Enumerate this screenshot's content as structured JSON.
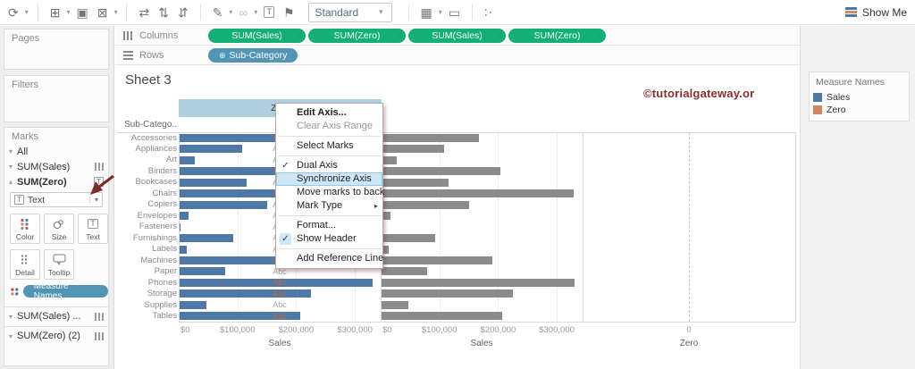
{
  "toolbar": {
    "standard_label": "Standard",
    "show_me_label": "Show Me",
    "items": [
      {
        "name": "refresh-icon",
        "glyph": "⟳"
      },
      {
        "name": "refresh-caret",
        "caret": true
      },
      {
        "divider": true
      },
      {
        "name": "new-worksheet-icon",
        "glyph": "⊞"
      },
      {
        "name": "new-worksheet-caret",
        "caret": true
      },
      {
        "name": "duplicate-sheet-icon",
        "glyph": "▣"
      },
      {
        "name": "clear-sheet-icon",
        "glyph": "⊠"
      },
      {
        "name": "clear-sheet-caret",
        "caret": true
      },
      {
        "divider": true
      },
      {
        "name": "swap-rows-columns-icon",
        "glyph": "⇄"
      },
      {
        "name": "sort-ascending-icon",
        "glyph": "⇅"
      },
      {
        "name": "sort-descending-icon",
        "glyph": "⇵"
      },
      {
        "divider": true
      },
      {
        "name": "highlight-icon",
        "glyph": "✎"
      },
      {
        "name": "highlight-caret",
        "caret": true
      },
      {
        "name": "group-members-icon",
        "glyph": "∞",
        "disabled": true
      },
      {
        "name": "group-members-caret",
        "caret": true,
        "disabled": true
      },
      {
        "name": "show-mark-labels-icon",
        "glyph": "T",
        "boxed": true
      },
      {
        "name": "fix-axes-icon",
        "glyph": "⚑"
      },
      {
        "standard": true
      },
      {
        "divider": true
      },
      {
        "name": "show-me-panel-icon",
        "glyph": "▦"
      },
      {
        "name": "show-me-panel-caret",
        "caret": true
      },
      {
        "name": "presentation-mode-icon",
        "glyph": "▭"
      },
      {
        "divider": true
      },
      {
        "name": "share-icon",
        "glyph": "∴",
        "rot": true
      }
    ]
  },
  "shelves": {
    "columns_label": "Columns",
    "rows_label": "Rows",
    "column_pills": [
      "SUM(Sales)",
      "SUM(Zero)",
      "SUM(Sales)",
      "SUM(Zero)"
    ],
    "row_pills": [
      "Sub-Category"
    ]
  },
  "sidebar": {
    "pages_label": "Pages",
    "filters_label": "Filters",
    "marks_label": "Marks",
    "marks_rows": [
      {
        "label": "All",
        "expanded": false,
        "icon": "none",
        "bold": false
      },
      {
        "label": "SUM(Sales)",
        "expanded": false,
        "icon": "bars",
        "bold": false
      },
      {
        "label": "SUM(Zero)",
        "expanded": true,
        "icon": "text",
        "bold": true
      }
    ],
    "mark_type_dropdown": "Text",
    "buttons_row1": [
      {
        "label": "Color",
        "icon": "color"
      },
      {
        "label": "Size",
        "icon": "size"
      },
      {
        "label": "Text",
        "icon": "text"
      }
    ],
    "buttons_row2": [
      {
        "label": "Detail",
        "icon": "detail"
      },
      {
        "label": "Tooltip",
        "icon": "tooltip"
      }
    ],
    "measure_names_pill": "Measure Names",
    "bottom_rows": [
      "SUM(Sales) ...",
      "SUM(Zero) (2)"
    ]
  },
  "sheet": {
    "title": "Sheet 3",
    "watermark": "©tutorialgateway.or",
    "selected_axis_header": "Zero",
    "row_header": "Sub-Catego..",
    "mark_text": "Abc"
  },
  "context_menu": {
    "items": [
      {
        "label": "Edit Axis...",
        "bold": true
      },
      {
        "label": "Clear Axis Range",
        "disabled": true
      },
      {
        "separator": true
      },
      {
        "label": "Select Marks"
      },
      {
        "separator": true
      },
      {
        "label": "Dual Axis",
        "checked": true
      },
      {
        "label": "Synchronize Axis",
        "highlighted": true
      },
      {
        "label": "Move marks to back"
      },
      {
        "label": "Mark Type",
        "submenu": true
      },
      {
        "separator": true
      },
      {
        "label": "Format..."
      },
      {
        "label": "Show Header",
        "checked": true,
        "check_boxed": true
      },
      {
        "separator": true
      },
      {
        "label": "Add Reference Line"
      }
    ]
  },
  "legend": {
    "title": "Measure Names",
    "items": [
      {
        "label": "Sales",
        "color": "#4e79a7"
      },
      {
        "label": "Zero",
        "color": "#d1885c"
      }
    ]
  },
  "chart_data": {
    "type": "bar",
    "title": "Sheet 3",
    "categories": [
      "Accessories",
      "Appliances",
      "Art",
      "Binders",
      "Bookcases",
      "Chairs",
      "Copiers",
      "Envelopes",
      "Fasteners",
      "Furnishings",
      "Labels",
      "Machines",
      "Paper",
      "Phones",
      "Storage",
      "Supplies",
      "Tables"
    ],
    "series": [
      {
        "name": "Sales",
        "values": [
          167380,
          107532,
          27119,
          203413,
          114880,
          328449,
          149528,
          16476,
          3024,
          91705,
          12486,
          189239,
          78479,
          330007,
          223844,
          46674,
          206966
        ]
      },
      {
        "name": "Zero",
        "values": [
          0,
          0,
          0,
          0,
          0,
          0,
          0,
          0,
          0,
          0,
          0,
          0,
          0,
          0,
          0,
          0,
          0
        ]
      }
    ],
    "panels": [
      {
        "axis_title": "Sales",
        "ticks": [
          "$0",
          "$100,000",
          "$200,000",
          "$300,000"
        ],
        "tick_values": [
          0,
          100000,
          200000,
          300000
        ],
        "xlim": [
          0,
          345000
        ]
      },
      {
        "axis_title": "Sales",
        "ticks": [
          "$0",
          "$100,000",
          "$200,000",
          "$300,000"
        ],
        "tick_values": [
          0,
          100000,
          200000,
          300000
        ],
        "xlim": [
          0,
          345000
        ]
      },
      {
        "axis_title": "Zero",
        "ticks": [
          "0"
        ],
        "tick_values": [
          0
        ],
        "xlim": [
          -1,
          1
        ]
      }
    ],
    "ylabel": "Sub-Category",
    "legend_position": "right",
    "grid": true
  },
  "colors": {
    "bar_blue": "#4e79a7",
    "bar_gray": "#8b8b8b",
    "abc_on_bar": "#c2693c",
    "abc_off_bar": "#a8a8a8",
    "pill_green": "#12b076",
    "pill_blue": "#5295b5",
    "header_selected": "#b0cfe0",
    "menu_highlight": "#cde7f8",
    "watermark": "#8a2f2e",
    "annotation_arrow": "#7d2c28"
  }
}
